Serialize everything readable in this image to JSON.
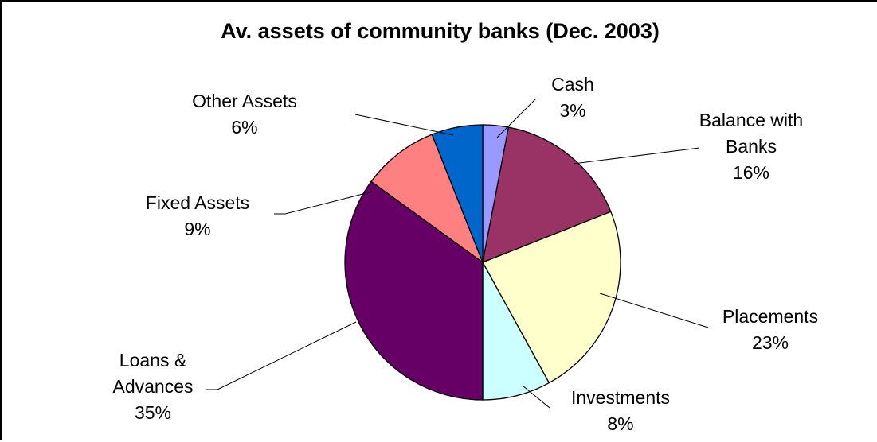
{
  "chart_data": {
    "type": "pie",
    "title": "Av. assets of community banks (Dec. 2003)",
    "start_angle_deg": 0,
    "direction": "clockwise",
    "slices": [
      {
        "name_lines": [
          "Cash"
        ],
        "value": 3,
        "label": "3%",
        "color": "#9999FF"
      },
      {
        "name_lines": [
          "Balance with",
          "Banks"
        ],
        "value": 16,
        "label": "16%",
        "color": "#993366"
      },
      {
        "name_lines": [
          "Placements"
        ],
        "value": 23,
        "label": "23%",
        "color": "#FFFFCC"
      },
      {
        "name_lines": [
          "Investments"
        ],
        "value": 8,
        "label": "8%",
        "color": "#CCFFFF"
      },
      {
        "name_lines": [
          "Loans &",
          "Advances"
        ],
        "value": 35,
        "label": "35%",
        "color": "#660066"
      },
      {
        "name_lines": [
          "Fixed Assets"
        ],
        "value": 9,
        "label": "9%",
        "color": "#FF8080"
      },
      {
        "name_lines": [
          "Other Assets"
        ],
        "value": 6,
        "label": "6%",
        "color": "#0066CC"
      }
    ]
  }
}
